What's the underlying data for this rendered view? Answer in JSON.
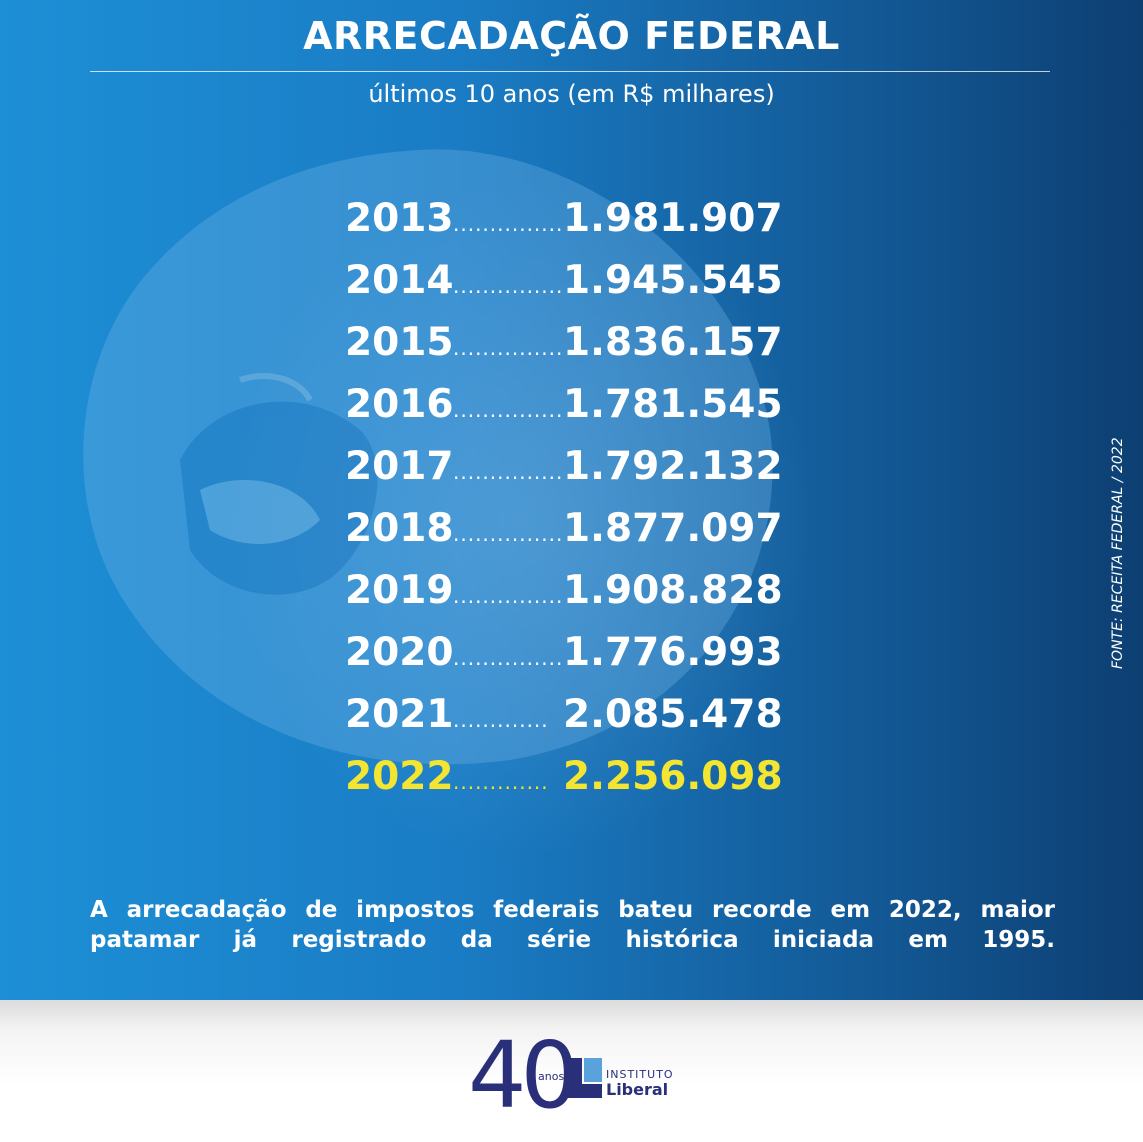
{
  "header": {
    "title": "ARRECADAÇÃO FEDERAL",
    "subtitle": "últimos 10 anos (em R$ milhares)"
  },
  "table": {
    "rows": [
      {
        "year": "2013",
        "dots": "...............",
        "value": "1.981.907"
      },
      {
        "year": "2014",
        "dots": "...............",
        "value": "1.945.545"
      },
      {
        "year": "2015",
        "dots": "...............",
        "value": "1.836.157"
      },
      {
        "year": "2016",
        "dots": "...............",
        "value": "1.781.545"
      },
      {
        "year": "2017",
        "dots": "...............",
        "value": "1.792.132"
      },
      {
        "year": "2018",
        "dots": "...............",
        "value": "1.877.097"
      },
      {
        "year": "2019",
        "dots": "...............",
        "value": "1.908.828"
      },
      {
        "year": "2020",
        "dots": "...............",
        "value": "1.776.993"
      },
      {
        "year": "2021",
        "dots": ".............",
        "value": "2.085.478"
      },
      {
        "year": "2022",
        "dots": ".............",
        "value": "2.256.098"
      }
    ]
  },
  "footnote": "A arrecadação de impostos federais bateu recorde em 2022, maior patamar já registrado da série histórica iniciada em 1995.",
  "source": "FONTE: RECEITA FEDERAL / 2022",
  "logo": {
    "number": "40",
    "anos": "anos",
    "institute": "INSTITUTO",
    "name": "Liberal"
  },
  "colors": {
    "highlight": "#f4e531",
    "text": "#ffffff",
    "brand": "#2a2f7a"
  }
}
